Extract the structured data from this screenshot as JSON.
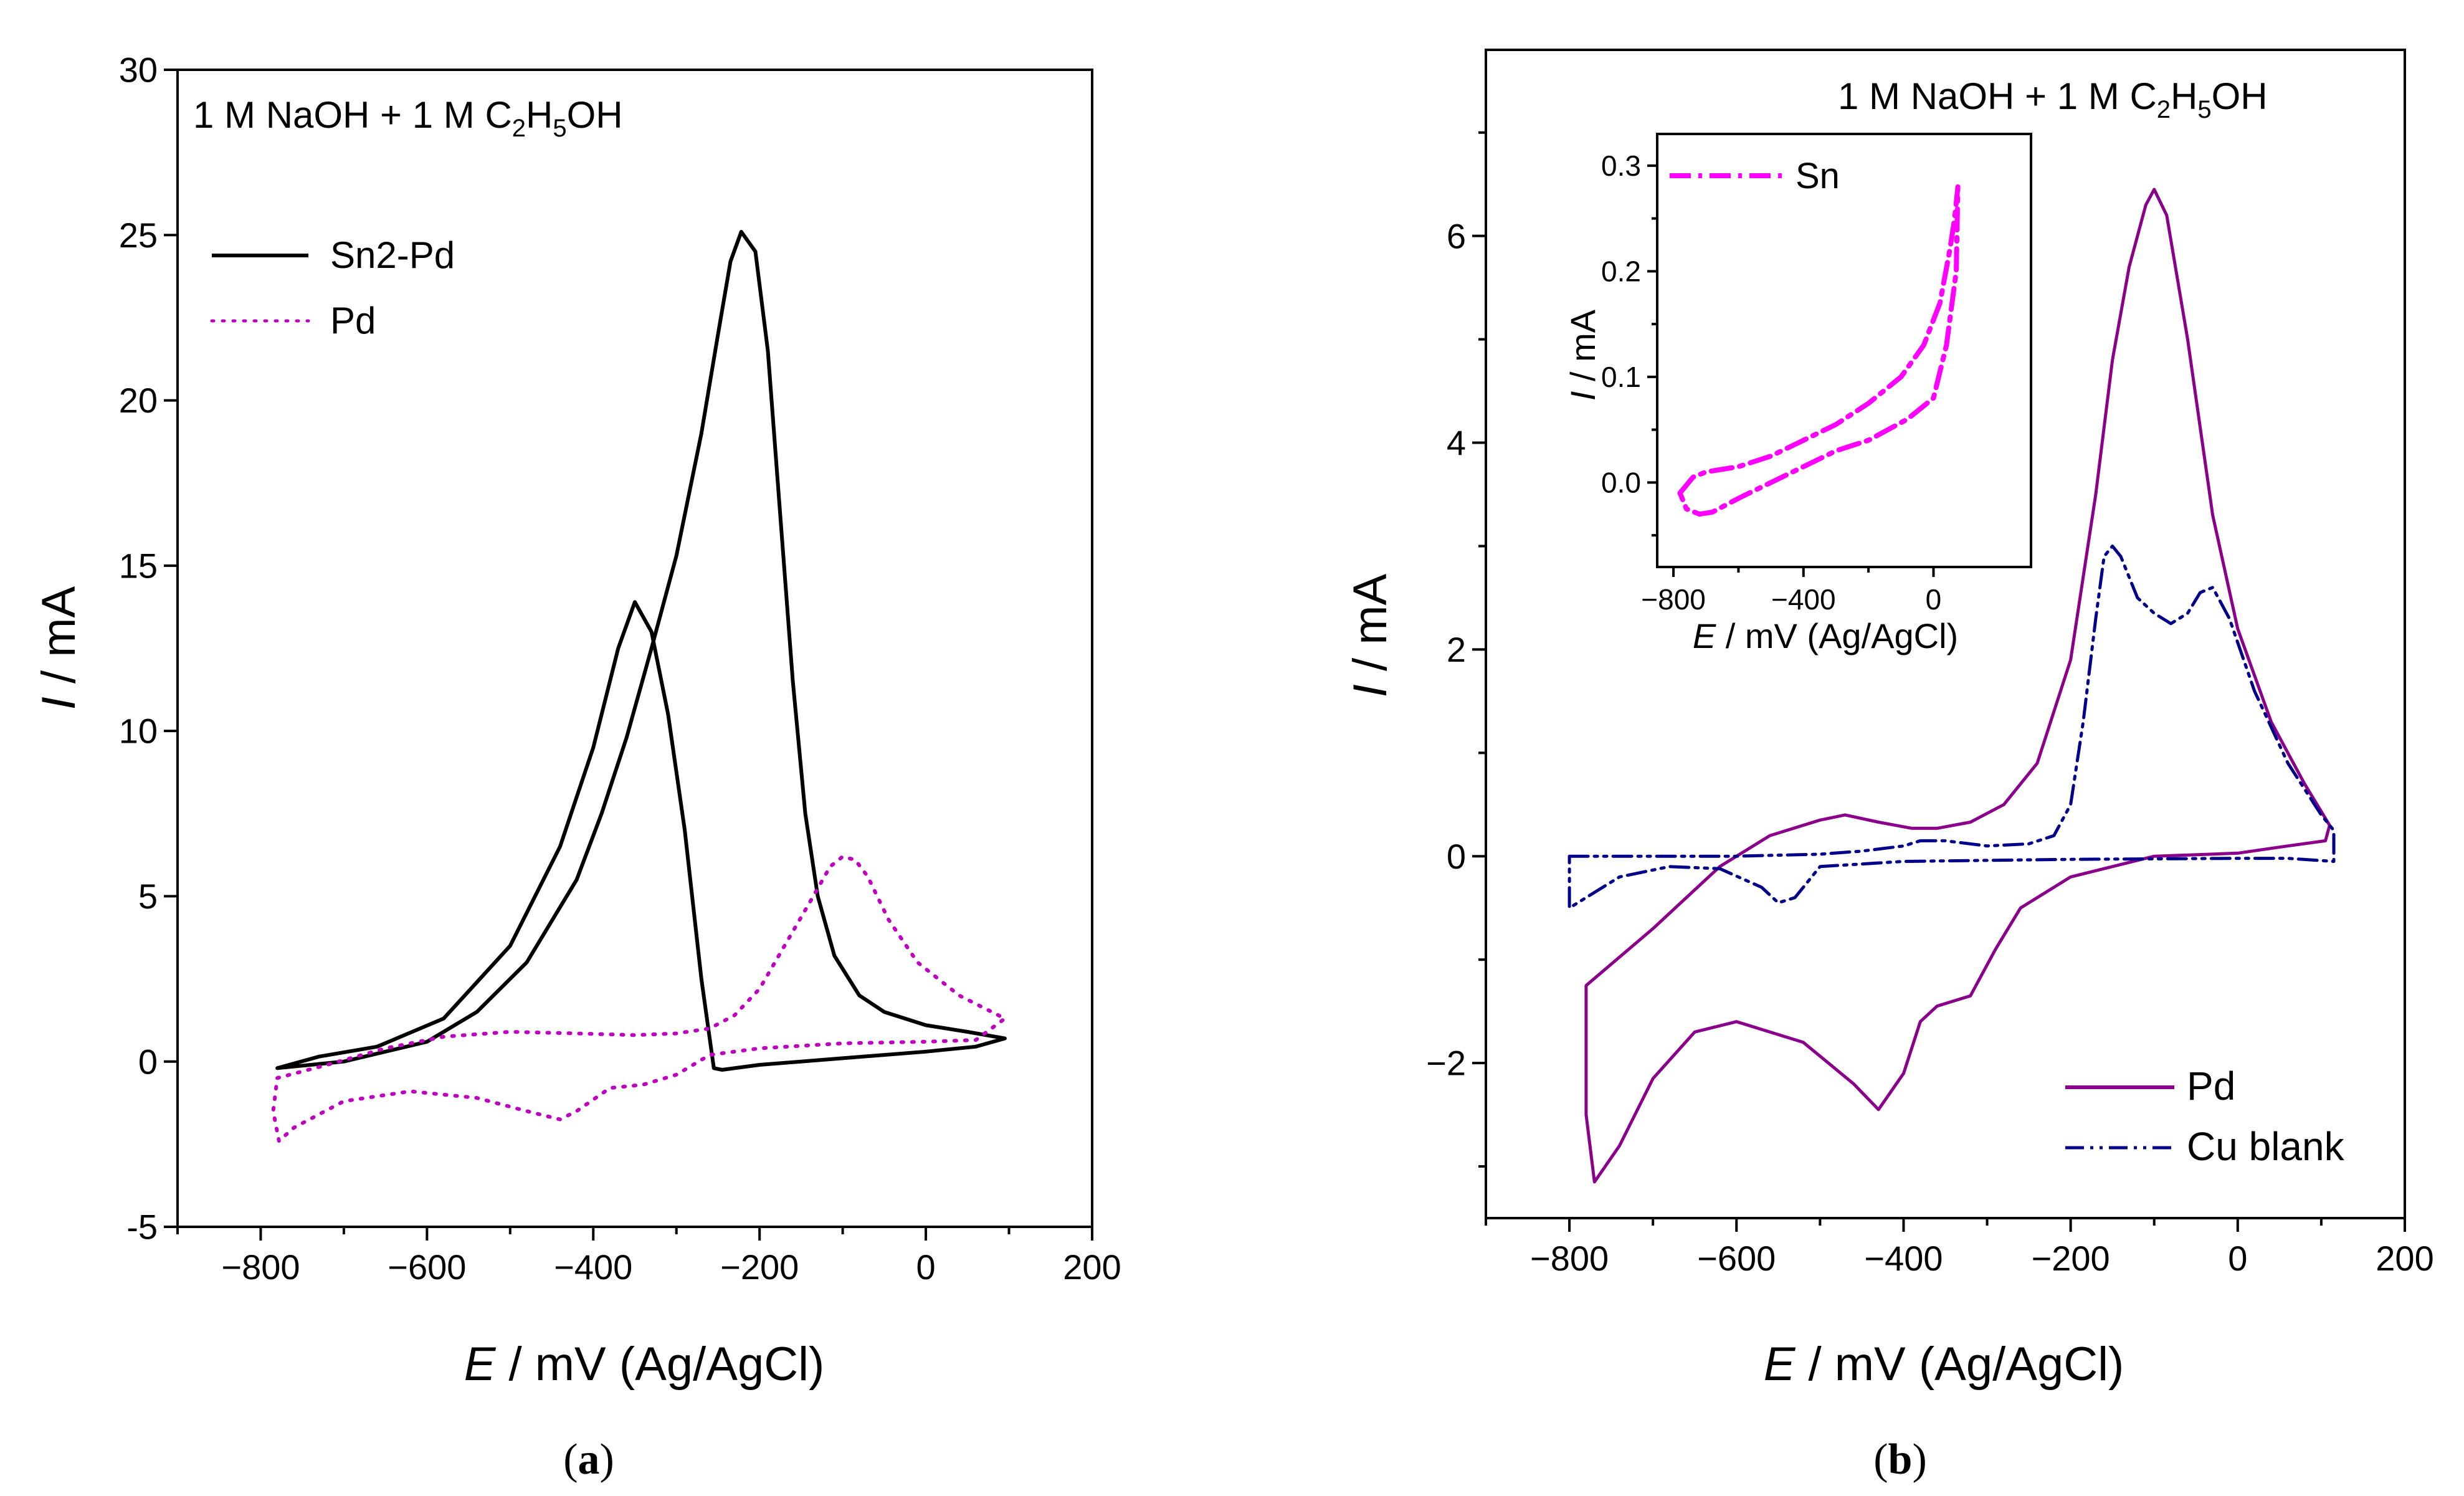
{
  "chart_data": [
    {
      "id": "a",
      "type": "line",
      "panel_label": "(a)",
      "panel_letter": "a",
      "annotation": {
        "prefix": "1 M NaOH + 1 M C",
        "sub1": "2",
        "mid": "H",
        "sub2": "5",
        "suffix": "OH"
      },
      "xlabel": {
        "var": "E",
        "rest": " / mV (Ag/AgCl)"
      },
      "ylabel": {
        "var": "I",
        "rest": " / mA"
      },
      "xlim": [
        -900,
        200
      ],
      "ylim": [
        -5,
        30
      ],
      "xticks": [
        -800,
        -600,
        -400,
        -200,
        0,
        200
      ],
      "xtick_labels": [
        "−800",
        "−600",
        "−400",
        "−200",
        "0",
        "200"
      ],
      "yticks": [
        -5,
        0,
        5,
        10,
        15,
        20,
        25,
        30
      ],
      "ytick_labels": [
        "-5",
        "0",
        "5",
        "10",
        "15",
        "20",
        "25",
        "30"
      ],
      "legend_position": "top-left",
      "series": [
        {
          "name": "Sn2-Pd",
          "color": "#000000",
          "style": "solid",
          "points": [
            [
              -780,
              -0.2
            ],
            [
              -700,
              0.0
            ],
            [
              -600,
              0.6
            ],
            [
              -540,
              1.5
            ],
            [
              -480,
              3.0
            ],
            [
              -420,
              5.5
            ],
            [
              -390,
              7.5
            ],
            [
              -360,
              9.8
            ],
            [
              -330,
              12.5
            ],
            [
              -300,
              15.3
            ],
            [
              -270,
              19.0
            ],
            [
              -250,
              22.0
            ],
            [
              -235,
              24.2
            ],
            [
              -222,
              25.1
            ],
            [
              -205,
              24.5
            ],
            [
              -190,
              21.5
            ],
            [
              -175,
              16.5
            ],
            [
              -160,
              11.5
            ],
            [
              -145,
              7.5
            ],
            [
              -130,
              5.0
            ],
            [
              -110,
              3.2
            ],
            [
              -80,
              2.0
            ],
            [
              -50,
              1.5
            ],
            [
              0,
              1.1
            ],
            [
              50,
              0.9
            ],
            [
              95,
              0.7
            ],
            [
              60,
              0.45
            ],
            [
              0,
              0.3
            ],
            [
              -100,
              0.1
            ],
            [
              -200,
              -0.1
            ],
            [
              -245,
              -0.25
            ],
            [
              -255,
              -0.2
            ],
            [
              -270,
              2.5
            ],
            [
              -290,
              7.0
            ],
            [
              -310,
              10.5
            ],
            [
              -330,
              13.0
            ],
            [
              -350,
              13.9
            ],
            [
              -370,
              12.5
            ],
            [
              -400,
              9.5
            ],
            [
              -440,
              6.5
            ],
            [
              -500,
              3.5
            ],
            [
              -580,
              1.3
            ],
            [
              -660,
              0.45
            ],
            [
              -730,
              0.15
            ],
            [
              -780,
              -0.2
            ]
          ]
        },
        {
          "name": "Pd",
          "color": "#c000c0",
          "style": "dotted",
          "points": [
            [
              -780,
              -0.5
            ],
            [
              -720,
              -0.1
            ],
            [
              -650,
              0.4
            ],
            [
              -580,
              0.75
            ],
            [
              -500,
              0.9
            ],
            [
              -420,
              0.85
            ],
            [
              -350,
              0.8
            ],
            [
              -300,
              0.85
            ],
            [
              -260,
              1.0
            ],
            [
              -230,
              1.4
            ],
            [
              -200,
              2.2
            ],
            [
              -170,
              3.5
            ],
            [
              -140,
              4.8
            ],
            [
              -115,
              5.9
            ],
            [
              -100,
              6.2
            ],
            [
              -85,
              6.1
            ],
            [
              -70,
              5.6
            ],
            [
              -45,
              4.3
            ],
            [
              -10,
              3.0
            ],
            [
              40,
              2.0
            ],
            [
              95,
              1.3
            ],
            [
              60,
              0.65
            ],
            [
              0,
              0.6
            ],
            [
              -100,
              0.55
            ],
            [
              -200,
              0.4
            ],
            [
              -260,
              0.2
            ],
            [
              -300,
              -0.4
            ],
            [
              -340,
              -0.7
            ],
            [
              -380,
              -0.8
            ],
            [
              -420,
              -1.5
            ],
            [
              -440,
              -1.75
            ],
            [
              -480,
              -1.5
            ],
            [
              -540,
              -1.1
            ],
            [
              -620,
              -0.9
            ],
            [
              -700,
              -1.2
            ],
            [
              -760,
              -2.0
            ],
            [
              -778,
              -2.4
            ],
            [
              -785,
              -1.5
            ],
            [
              -780,
              -0.5
            ]
          ]
        }
      ]
    },
    {
      "id": "b",
      "type": "line",
      "panel_label": "(b)",
      "panel_letter": "b",
      "annotation": {
        "prefix": "1 M NaOH + 1 M C",
        "sub1": "2",
        "mid": "H",
        "sub2": "5",
        "suffix": "OH"
      },
      "xlabel": {
        "var": "E",
        "rest": " / mV (Ag/AgCl)"
      },
      "ylabel": {
        "var": "I",
        "rest": " / mA"
      },
      "xlim": [
        -900,
        200
      ],
      "ylim": [
        -3.5,
        7.8
      ],
      "xticks": [
        -800,
        -600,
        -400,
        -200,
        0,
        200
      ],
      "xtick_labels": [
        "−800",
        "−600",
        "−400",
        "−200",
        "0",
        "200"
      ],
      "yticks": [
        -2,
        0,
        2,
        4,
        6
      ],
      "ytick_labels": [
        "−2",
        "0",
        "2",
        "4",
        "6"
      ],
      "legend_position": "bottom-right",
      "series": [
        {
          "name": "Pd",
          "color": "#8b008b",
          "style": "solid",
          "points": [
            [
              -780,
              -1.25
            ],
            [
              -700,
              -0.7
            ],
            [
              -620,
              -0.1
            ],
            [
              -560,
              0.2
            ],
            [
              -500,
              0.35
            ],
            [
              -470,
              0.4
            ],
            [
              -430,
              0.33
            ],
            [
              -390,
              0.27
            ],
            [
              -360,
              0.27
            ],
            [
              -320,
              0.33
            ],
            [
              -280,
              0.5
            ],
            [
              -240,
              0.9
            ],
            [
              -200,
              1.9
            ],
            [
              -170,
              3.5
            ],
            [
              -150,
              4.8
            ],
            [
              -130,
              5.7
            ],
            [
              -110,
              6.3
            ],
            [
              -100,
              6.45
            ],
            [
              -85,
              6.2
            ],
            [
              -60,
              5.0
            ],
            [
              -30,
              3.3
            ],
            [
              0,
              2.2
            ],
            [
              40,
              1.3
            ],
            [
              80,
              0.7
            ],
            [
              110,
              0.3
            ],
            [
              105,
              0.15
            ],
            [
              60,
              0.1
            ],
            [
              0,
              0.03
            ],
            [
              -100,
              0.0
            ],
            [
              -200,
              -0.2
            ],
            [
              -260,
              -0.5
            ],
            [
              -290,
              -0.9
            ],
            [
              -320,
              -1.35
            ],
            [
              -340,
              -1.4
            ],
            [
              -360,
              -1.45
            ],
            [
              -380,
              -1.6
            ],
            [
              -400,
              -2.1
            ],
            [
              -430,
              -2.45
            ],
            [
              -460,
              -2.2
            ],
            [
              -520,
              -1.8
            ],
            [
              -600,
              -1.6
            ],
            [
              -650,
              -1.7
            ],
            [
              -700,
              -2.15
            ],
            [
              -740,
              -2.8
            ],
            [
              -770,
              -3.15
            ],
            [
              -780,
              -2.5
            ],
            [
              -780,
              -1.25
            ]
          ]
        },
        {
          "name": "Cu blank",
          "color": "#00008b",
          "style": "dashdotdot",
          "points": [
            [
              -800,
              0.0
            ],
            [
              -700,
              0.0
            ],
            [
              -600,
              0.0
            ],
            [
              -500,
              0.02
            ],
            [
              -450,
              0.05
            ],
            [
              -400,
              0.1
            ],
            [
              -380,
              0.15
            ],
            [
              -350,
              0.15
            ],
            [
              -300,
              0.1
            ],
            [
              -250,
              0.12
            ],
            [
              -220,
              0.2
            ],
            [
              -200,
              0.5
            ],
            [
              -185,
              1.3
            ],
            [
              -170,
              2.3
            ],
            [
              -160,
              2.9
            ],
            [
              -150,
              3.0
            ],
            [
              -140,
              2.9
            ],
            [
              -120,
              2.5
            ],
            [
              -100,
              2.35
            ],
            [
              -80,
              2.25
            ],
            [
              -60,
              2.35
            ],
            [
              -45,
              2.55
            ],
            [
              -30,
              2.6
            ],
            [
              -10,
              2.3
            ],
            [
              20,
              1.6
            ],
            [
              60,
              0.9
            ],
            [
              100,
              0.4
            ],
            [
              115,
              0.25
            ],
            [
              115,
              -0.05
            ],
            [
              60,
              -0.02
            ],
            [
              0,
              -0.02
            ],
            [
              -200,
              -0.03
            ],
            [
              -400,
              -0.05
            ],
            [
              -500,
              -0.1
            ],
            [
              -530,
              -0.4
            ],
            [
              -550,
              -0.45
            ],
            [
              -570,
              -0.3
            ],
            [
              -620,
              -0.12
            ],
            [
              -680,
              -0.1
            ],
            [
              -740,
              -0.2
            ],
            [
              -780,
              -0.4
            ],
            [
              -800,
              -0.5
            ],
            [
              -800,
              0.0
            ]
          ]
        }
      ],
      "inset": {
        "type": "line",
        "xlabel": {
          "var": "E",
          "rest": " / mV (Ag/AgCl)"
        },
        "ylabel": {
          "var": "I",
          "rest": " / mA"
        },
        "xlim": [
          -850,
          300
        ],
        "ylim": [
          -0.08,
          0.33
        ],
        "xticks": [
          -800,
          -400,
          0
        ],
        "xtick_labels": [
          "−800",
          "−400",
          "0"
        ],
        "yticks": [
          0.0,
          0.1,
          0.2,
          0.3
        ],
        "ytick_labels": [
          "0.0",
          "0.1",
          "0.2",
          "0.3"
        ],
        "legend_position": "top-left",
        "series": [
          {
            "name": "Sn",
            "color": "#ff00ff",
            "style": "dashdot",
            "points": [
              [
                -780,
                -0.01
              ],
              [
                -740,
                0.005
              ],
              [
                -700,
                0.01
              ],
              [
                -600,
                0.015
              ],
              [
                -500,
                0.025
              ],
              [
                -400,
                0.04
              ],
              [
                -300,
                0.055
              ],
              [
                -200,
                0.075
              ],
              [
                -100,
                0.1
              ],
              [
                -30,
                0.13
              ],
              [
                20,
                0.17
              ],
              [
                50,
                0.22
              ],
              [
                65,
                0.25
              ],
              [
                75,
                0.28
              ],
              [
                70,
                0.2
              ],
              [
                40,
                0.13
              ],
              [
                0,
                0.08
              ],
              [
                -80,
                0.06
              ],
              [
                -200,
                0.04
              ],
              [
                -300,
                0.03
              ],
              [
                -400,
                0.015
              ],
              [
                -500,
                0.0
              ],
              [
                -600,
                -0.015
              ],
              [
                -680,
                -0.028
              ],
              [
                -720,
                -0.03
              ],
              [
                -760,
                -0.025
              ],
              [
                -780,
                -0.01
              ]
            ]
          }
        ]
      }
    }
  ]
}
